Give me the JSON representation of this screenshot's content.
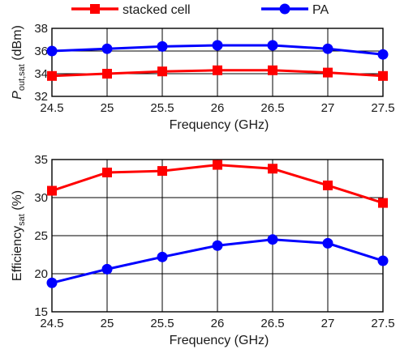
{
  "legend": {
    "items": [
      {
        "name": "stacked cell",
        "color": "#ff0000",
        "marker": "square"
      },
      {
        "name": "PA",
        "color": "#0000ff",
        "marker": "circle"
      }
    ],
    "placement": "top"
  },
  "chart_data": [
    {
      "type": "line",
      "title": "",
      "xlabel": "Frequency (GHz)",
      "ylabel_main": "P",
      "ylabel_sub": "out,sat",
      "ylabel_suffix": " (dBm)",
      "xlim": [
        24.5,
        27.5
      ],
      "ylim": [
        32,
        38
      ],
      "xticks": [
        "24.5",
        "25",
        "25.5",
        "26",
        "26.5",
        "27",
        "27.5"
      ],
      "yticks": [
        "32",
        "34",
        "36",
        "38"
      ],
      "grid": true,
      "x": [
        24.5,
        25,
        25.5,
        26,
        26.5,
        27,
        27.5
      ],
      "series": [
        {
          "name": "stacked cell",
          "color": "#ff0000",
          "marker": "square",
          "values": [
            33.8,
            34.0,
            34.2,
            34.3,
            34.3,
            34.1,
            33.8
          ]
        },
        {
          "name": "PA",
          "color": "#0000ff",
          "marker": "circle",
          "values": [
            36.0,
            36.2,
            36.4,
            36.5,
            36.5,
            36.2,
            35.7
          ]
        }
      ]
    },
    {
      "type": "line",
      "title": "",
      "xlabel": "Frequency (GHz)",
      "ylabel_main": "Efficiency",
      "ylabel_sub": "sat",
      "ylabel_suffix": " (%)",
      "xlim": [
        24.5,
        27.5
      ],
      "ylim": [
        15,
        35
      ],
      "xticks": [
        "24.5",
        "25",
        "25.5",
        "26",
        "26.5",
        "27",
        "27.5"
      ],
      "yticks": [
        "15",
        "20",
        "25",
        "30",
        "35"
      ],
      "grid": true,
      "x": [
        24.5,
        25,
        25.5,
        26,
        26.5,
        27,
        27.5
      ],
      "series": [
        {
          "name": "stacked cell",
          "color": "#ff0000",
          "marker": "square",
          "values": [
            30.9,
            33.3,
            33.5,
            34.3,
            33.8,
            31.6,
            29.3
          ]
        },
        {
          "name": "PA",
          "color": "#0000ff",
          "marker": "circle",
          "values": [
            18.8,
            20.6,
            22.2,
            23.7,
            24.5,
            24.0,
            21.7
          ]
        }
      ]
    }
  ]
}
